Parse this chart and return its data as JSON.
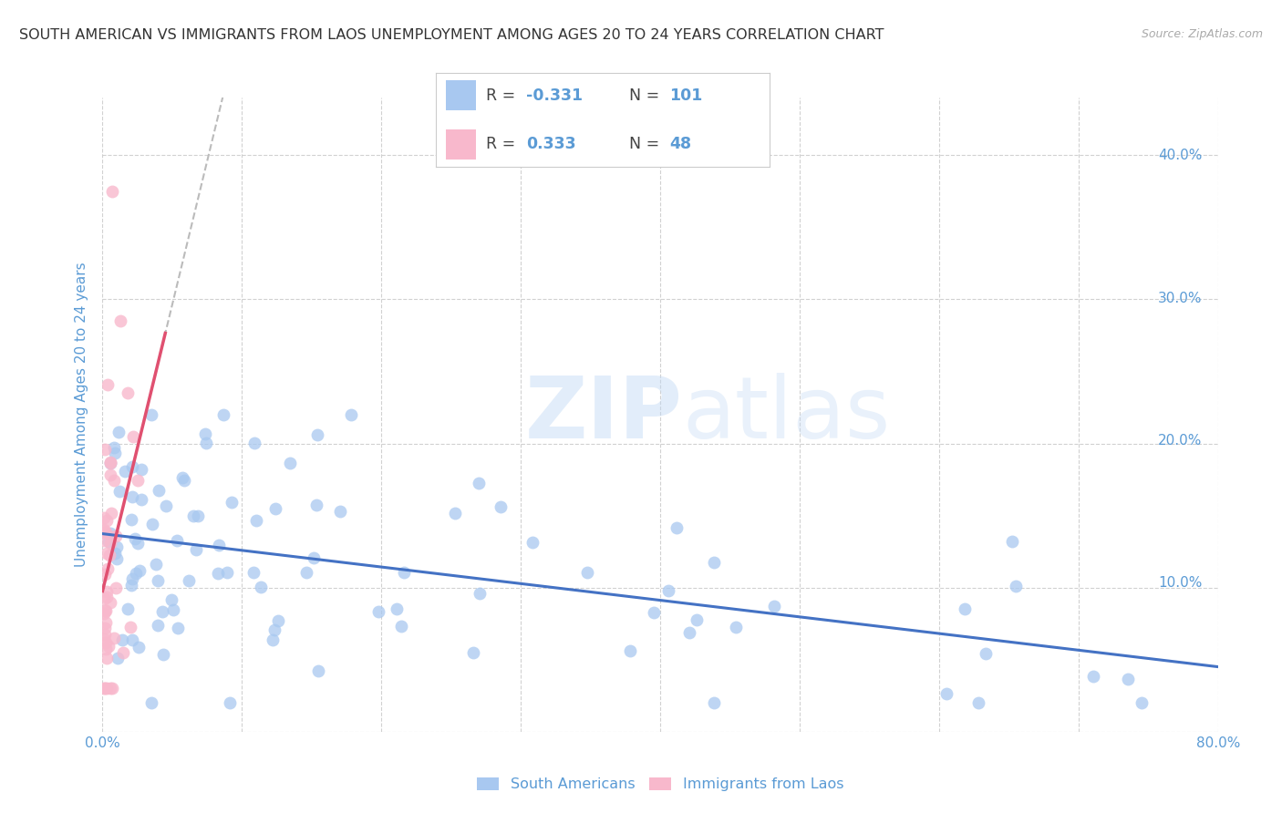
{
  "title": "SOUTH AMERICAN VS IMMIGRANTS FROM LAOS UNEMPLOYMENT AMONG AGES 20 TO 24 YEARS CORRELATION CHART",
  "source": "Source: ZipAtlas.com",
  "ylabel": "Unemployment Among Ages 20 to 24 years",
  "xmin": 0.0,
  "xmax": 0.8,
  "ymin": 0.0,
  "ymax": 0.44,
  "xticks": [
    0.0,
    0.1,
    0.2,
    0.3,
    0.4,
    0.5,
    0.6,
    0.7,
    0.8
  ],
  "xtick_labels_bottom": [
    "0.0%",
    "",
    "",
    "",
    "",
    "",
    "",
    "",
    "80.0%"
  ],
  "yticks": [
    0.0,
    0.1,
    0.2,
    0.3,
    0.4
  ],
  "ytick_labels_right": [
    "",
    "10.0%",
    "20.0%",
    "30.0%",
    "40.0%"
  ],
  "blue_color": "#a8c8f0",
  "pink_color": "#f8b8cc",
  "trend_blue": "#4472c4",
  "trend_pink": "#e05070",
  "watermark_zip": "ZIP",
  "watermark_atlas": "atlas",
  "background_color": "#ffffff",
  "grid_color": "#cccccc",
  "tick_color": "#5b9bd5",
  "legend_R_blue": "-0.331",
  "legend_N_blue": "101",
  "legend_R_pink": "0.333",
  "legend_N_pink": "48",
  "legend_label_blue": "South Americans",
  "legend_label_pink": "Immigrants from Laos"
}
